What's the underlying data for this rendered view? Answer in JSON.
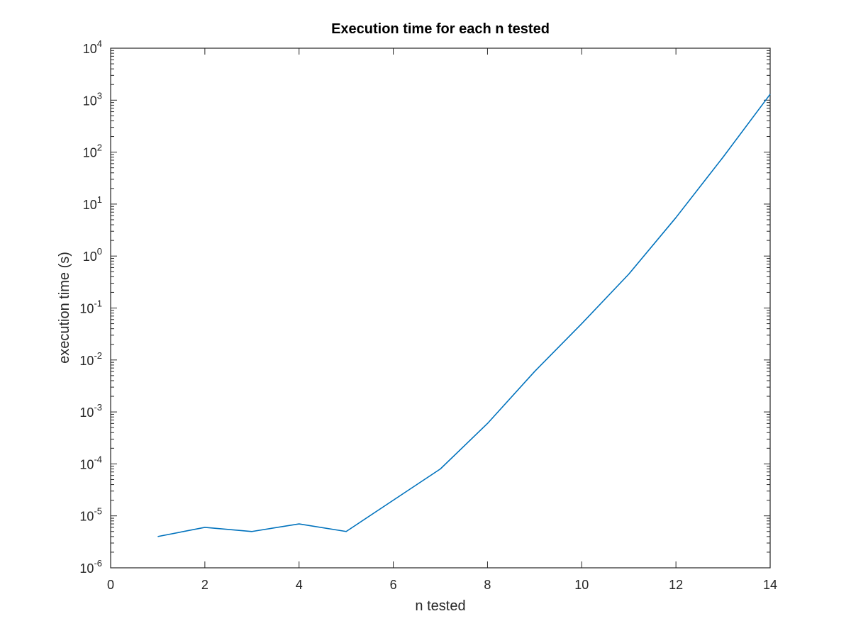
{
  "chart_data": {
    "type": "line",
    "title": "Execution time for each n tested",
    "xlabel": "n tested",
    "ylabel": "execution time (s)",
    "xlim": [
      0,
      14
    ],
    "ylim": [
      1e-06,
      10000
    ],
    "yscale": "log",
    "grid": false,
    "legend": "none",
    "x_ticks": [
      "0",
      "2",
      "4",
      "6",
      "8",
      "10",
      "12",
      "14"
    ],
    "y_ticks": [
      {
        "base": "10",
        "exp": "-6"
      },
      {
        "base": "10",
        "exp": "-5"
      },
      {
        "base": "10",
        "exp": "-4"
      },
      {
        "base": "10",
        "exp": "-3"
      },
      {
        "base": "10",
        "exp": "-2"
      },
      {
        "base": "10",
        "exp": "-1"
      },
      {
        "base": "10",
        "exp": "0"
      },
      {
        "base": "10",
        "exp": "1"
      },
      {
        "base": "10",
        "exp": "2"
      },
      {
        "base": "10",
        "exp": "3"
      },
      {
        "base": "10",
        "exp": "4"
      }
    ],
    "series": [
      {
        "color": "#0072bd",
        "x": [
          1,
          2,
          3,
          4,
          5,
          6,
          7,
          8,
          9,
          10,
          11,
          12,
          13,
          14
        ],
        "y": [
          4e-06,
          6e-06,
          5e-06,
          7e-06,
          5e-06,
          2e-05,
          8e-05,
          0.0006,
          0.006,
          0.05,
          0.45,
          5.5,
          80,
          1300
        ]
      }
    ]
  }
}
